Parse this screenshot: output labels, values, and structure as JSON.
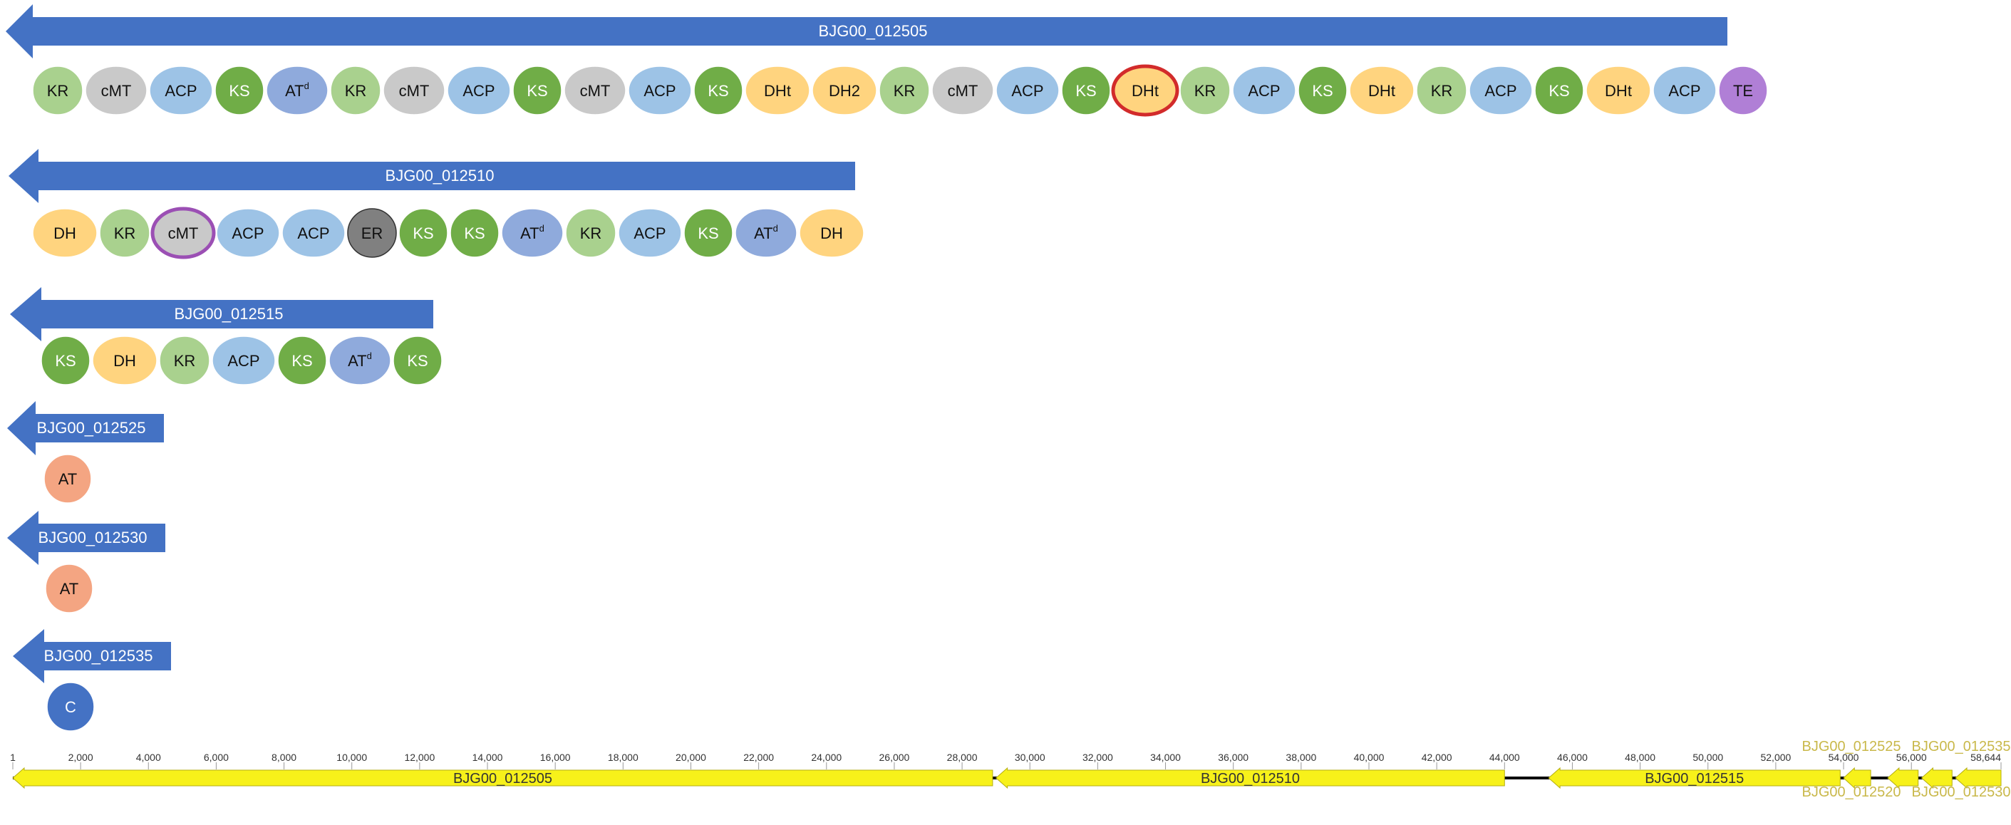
{
  "colors": {
    "arrow": "#4472c4",
    "KR": "#a9d18e",
    "cMT": "#c9c9c9",
    "ACP": "#9dc3e6",
    "KS": "#70ad47",
    "AT_d": "#8faadc",
    "DH": "#ffd47f",
    "ER": "#808080",
    "TE": "#b07fd6",
    "AT": "#f4a582",
    "C": "#4472c4",
    "gene_fill": "#f7f11a",
    "highlight_red": "#d22b2b",
    "highlight_purple": "#9b4fb4"
  },
  "genes": [
    {
      "name": "BJG00_012505",
      "domains": [
        {
          "label": "KR",
          "type": "KR"
        },
        {
          "label": "cMT",
          "type": "cMT"
        },
        {
          "label": "ACP",
          "type": "ACP"
        },
        {
          "label": "KS",
          "type": "KS"
        },
        {
          "label": "AT",
          "sup": "d",
          "type": "AT_d"
        },
        {
          "label": "KR",
          "type": "KR"
        },
        {
          "label": "cMT",
          "type": "cMT"
        },
        {
          "label": "ACP",
          "type": "ACP"
        },
        {
          "label": "KS",
          "type": "KS"
        },
        {
          "label": "cMT",
          "type": "cMT"
        },
        {
          "label": "ACP",
          "type": "ACP"
        },
        {
          "label": "KS",
          "type": "KS"
        },
        {
          "label": "DHt",
          "type": "DH"
        },
        {
          "label": "DH2",
          "type": "DH"
        },
        {
          "label": "KR",
          "type": "KR"
        },
        {
          "label": "cMT",
          "type": "cMT"
        },
        {
          "label": "ACP",
          "type": "ACP"
        },
        {
          "label": "KS",
          "type": "KS"
        },
        {
          "label": "DHt",
          "type": "DH",
          "highlight": "red"
        },
        {
          "label": "KR",
          "type": "KR"
        },
        {
          "label": "ACP",
          "type": "ACP"
        },
        {
          "label": "KS",
          "type": "KS"
        },
        {
          "label": "DHt",
          "type": "DH"
        },
        {
          "label": "KR",
          "type": "KR"
        },
        {
          "label": "ACP",
          "type": "ACP"
        },
        {
          "label": "KS",
          "type": "KS"
        },
        {
          "label": "DHt",
          "type": "DH"
        },
        {
          "label": "ACP",
          "type": "ACP"
        },
        {
          "label": "TE",
          "type": "TE"
        }
      ]
    },
    {
      "name": "BJG00_012510",
      "domains": [
        {
          "label": "DH",
          "type": "DH"
        },
        {
          "label": "KR",
          "type": "KR"
        },
        {
          "label": "cMT",
          "type": "cMT",
          "highlight": "purple"
        },
        {
          "label": "ACP",
          "type": "ACP"
        },
        {
          "label": "ACP",
          "type": "ACP"
        },
        {
          "label": "ER",
          "type": "ER"
        },
        {
          "label": "KS",
          "type": "KS"
        },
        {
          "label": "KS",
          "type": "KS"
        },
        {
          "label": "AT",
          "sup": "d",
          "type": "AT_d"
        },
        {
          "label": "KR",
          "type": "KR"
        },
        {
          "label": "ACP",
          "type": "ACP"
        },
        {
          "label": "KS",
          "type": "KS"
        },
        {
          "label": "AT",
          "sup": "d",
          "type": "AT_d"
        },
        {
          "label": "DH",
          "type": "DH"
        }
      ]
    },
    {
      "name": "BJG00_012515",
      "domains": [
        {
          "label": "KS",
          "type": "KS"
        },
        {
          "label": "DH",
          "type": "DH"
        },
        {
          "label": "KR",
          "type": "KR"
        },
        {
          "label": "ACP",
          "type": "ACP"
        },
        {
          "label": "KS",
          "type": "KS"
        },
        {
          "label": "AT",
          "sup": "d",
          "type": "AT_d"
        },
        {
          "label": "KS",
          "type": "KS"
        }
      ]
    },
    {
      "name": "BJG00_012525",
      "domains": [
        {
          "label": "AT",
          "type": "AT"
        }
      ]
    },
    {
      "name": "BJG00_012530",
      "domains": [
        {
          "label": "AT",
          "type": "AT"
        }
      ]
    },
    {
      "name": "BJG00_012535",
      "domains": [
        {
          "label": "C",
          "type": "C"
        }
      ]
    }
  ],
  "genome_map": {
    "start": 1,
    "end": 58644,
    "tick_labels": [
      "1",
      "2,000",
      "4,000",
      "6,000",
      "8,000",
      "10,000",
      "12,000",
      "14,000",
      "16,000",
      "18,000",
      "20,000",
      "22,000",
      "24,000",
      "26,000",
      "28,000",
      "30,000",
      "32,000",
      "34,000",
      "36,000",
      "38,000",
      "40,000",
      "42,000",
      "44,000",
      "46,000",
      "48,000",
      "50,000",
      "52,000",
      "54,000",
      "56,000",
      "58,644"
    ],
    "tick_values": [
      1,
      2000,
      4000,
      6000,
      8000,
      10000,
      12000,
      14000,
      16000,
      18000,
      20000,
      22000,
      24000,
      26000,
      28000,
      30000,
      32000,
      34000,
      36000,
      38000,
      40000,
      42000,
      44000,
      46000,
      48000,
      50000,
      52000,
      54000,
      56000,
      58644
    ],
    "genes": [
      {
        "name": "BJG00_012505",
        "start": 1,
        "end": 28900,
        "label_position": "inside"
      },
      {
        "name": "BJG00_012510",
        "start": 29000,
        "end": 44000,
        "label_position": "inside"
      },
      {
        "name": "BJG00_012515",
        "start": 45300,
        "end": 53900,
        "label_position": "inside"
      },
      {
        "name": "BJG00_012520",
        "start": 54000,
        "end": 54800,
        "label_position": "below"
      },
      {
        "name": "BJG00_012525",
        "start": 54000,
        "end": 54800,
        "label_position": "above",
        "draw": false
      },
      {
        "name": "BJG00_012530",
        "start": 56300,
        "end": 57200,
        "label_position": "below"
      },
      {
        "name": "BJG00_012535",
        "start": 57300,
        "end": 58644,
        "label_position": "above"
      },
      {
        "name": "",
        "start": 55300,
        "end": 56200,
        "label_position": "none"
      }
    ]
  }
}
